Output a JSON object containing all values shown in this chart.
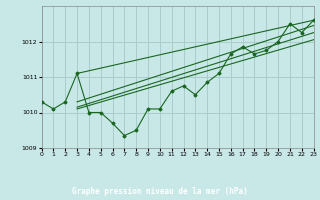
{
  "bg_color": "#c8e8e8",
  "grid_color": "#aacccc",
  "line_color": "#1a6620",
  "marker_color": "#1a6620",
  "footer_bg": "#2d5a1b",
  "footer_text": "Graphe pression niveau de la mer (hPa)",
  "footer_text_color": "#ffffff",
  "x_min": 0,
  "x_max": 23,
  "y_min": 1009,
  "y_max": 1013,
  "yticks": [
    1009,
    1010,
    1011,
    1012
  ],
  "xticks": [
    0,
    1,
    2,
    3,
    4,
    5,
    6,
    7,
    8,
    9,
    10,
    11,
    12,
    13,
    14,
    15,
    16,
    17,
    18,
    19,
    20,
    21,
    22,
    23
  ],
  "series_main": {
    "x": [
      0,
      1,
      2,
      3,
      4,
      5,
      6,
      7,
      8,
      9,
      10,
      11,
      12,
      13,
      14,
      15,
      16,
      17,
      18,
      19,
      20,
      21,
      22,
      23
    ],
    "y": [
      1010.3,
      1010.1,
      1010.3,
      1011.1,
      1010.0,
      1010.0,
      1009.7,
      1009.35,
      1009.5,
      1010.1,
      1010.1,
      1010.6,
      1010.75,
      1010.5,
      1010.85,
      1011.1,
      1011.65,
      1011.85,
      1011.65,
      1011.75,
      1012.0,
      1012.5,
      1012.25,
      1012.6
    ]
  },
  "series_line1": {
    "x": [
      3,
      23
    ],
    "y": [
      1011.1,
      1012.6
    ]
  },
  "series_line2": {
    "x": [
      3,
      23
    ],
    "y": [
      1010.3,
      1012.45
    ]
  },
  "series_line3": {
    "x": [
      3,
      23
    ],
    "y": [
      1010.15,
      1012.25
    ]
  },
  "series_line4": {
    "x": [
      3,
      23
    ],
    "y": [
      1010.1,
      1012.05
    ]
  }
}
